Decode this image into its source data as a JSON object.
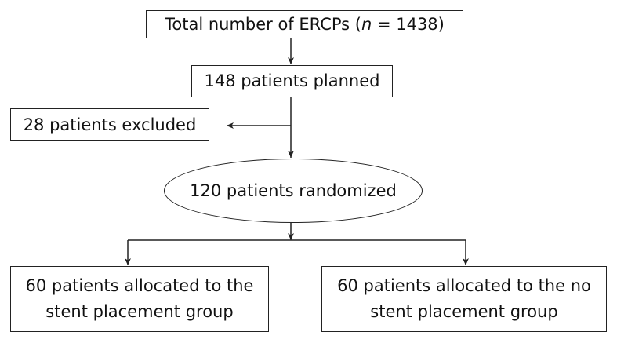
{
  "flowchart": {
    "total": {
      "text_before": "Total number of ERCPs (",
      "n_symbol": "n",
      "text_after": " = 1438)"
    },
    "planned": {
      "text": "148 patients planned"
    },
    "excluded": {
      "text": "28 patients excluded"
    },
    "randomized": {
      "text": "120 patients randomized"
    },
    "stent_group": {
      "line1": "60 patients allocated to the",
      "line2": "stent placement group"
    },
    "no_stent_group": {
      "line1": "60 patients allocated to the no",
      "line2": "stent placement group"
    }
  },
  "colors": {
    "line": "#222222",
    "text": "#111111",
    "background": "#ffffff"
  }
}
